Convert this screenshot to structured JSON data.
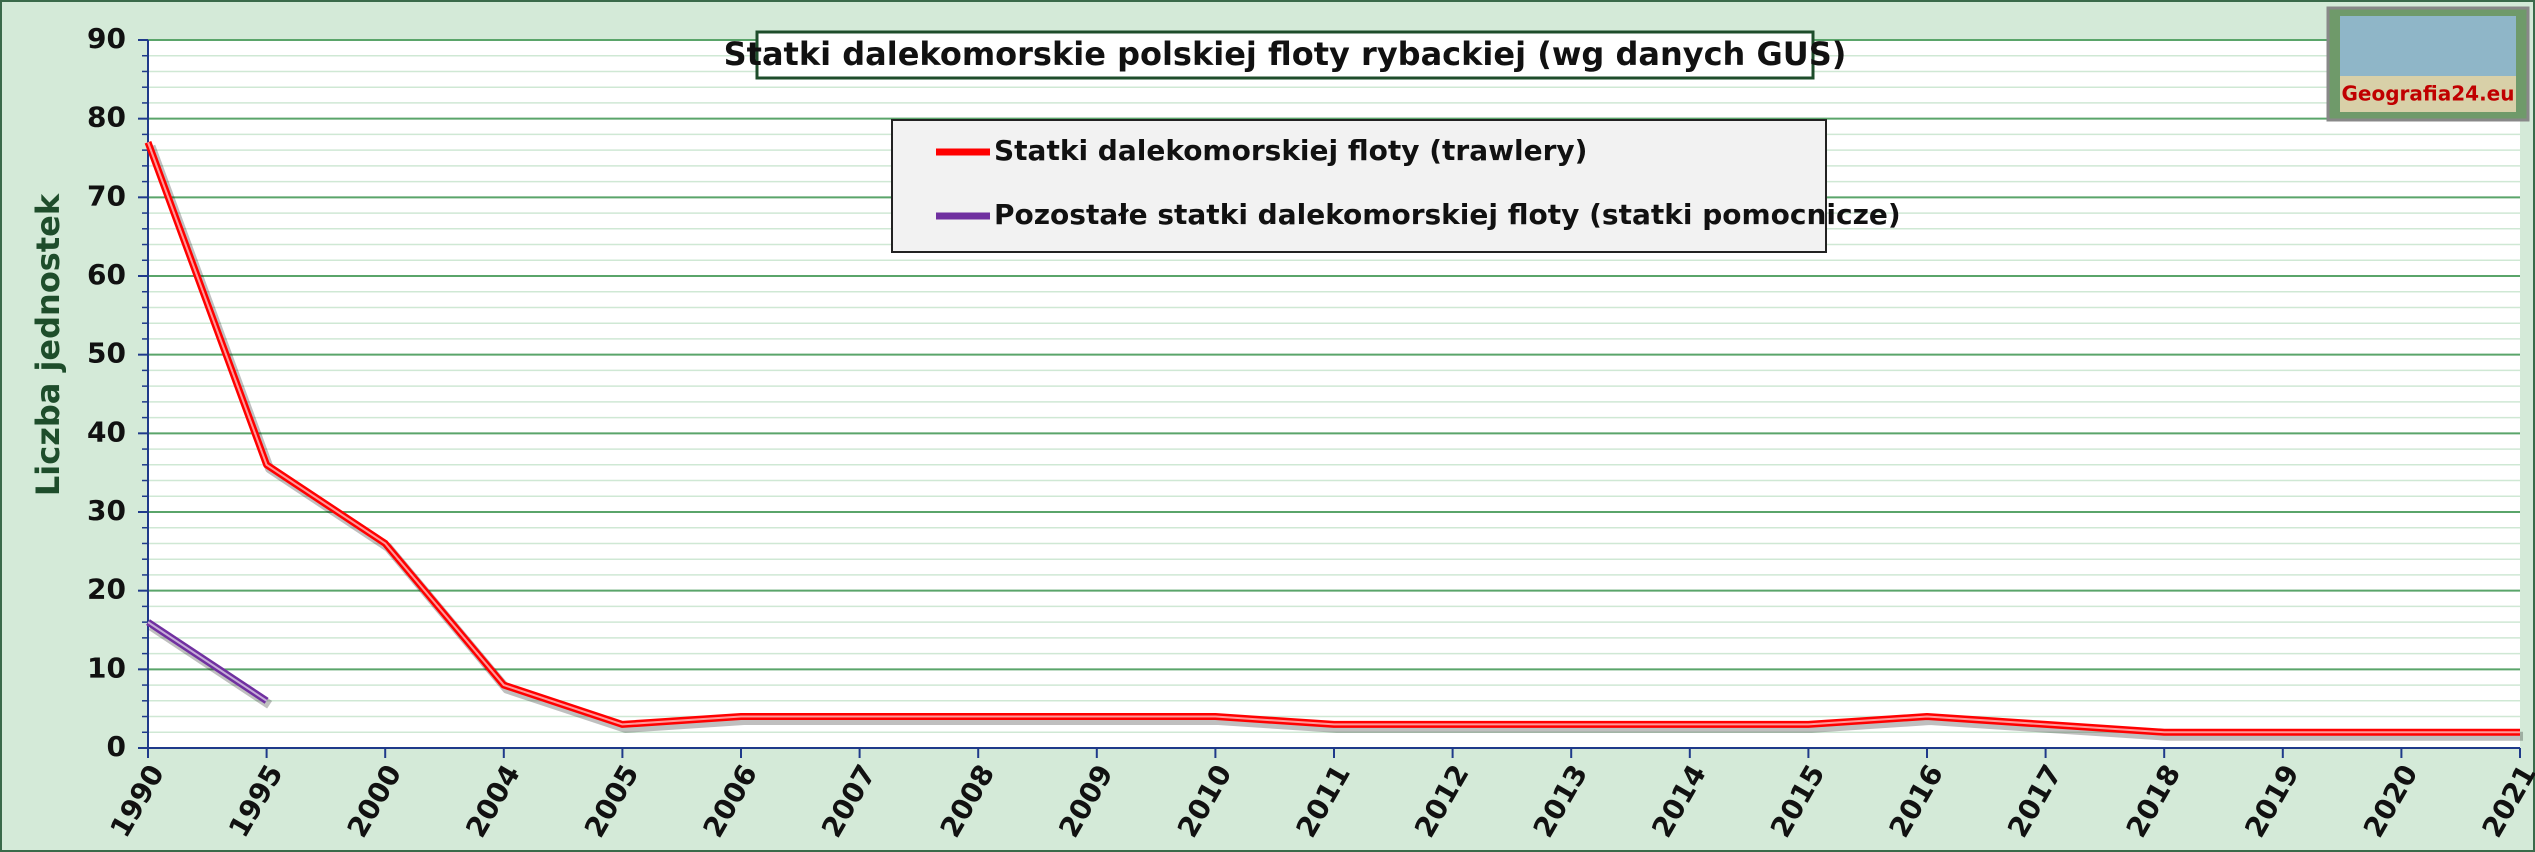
{
  "chart_data": {
    "type": "line",
    "title": "Statki dalekomorskie polskiej floty rybackiej (wg danych GUS)",
    "ylabel": "Liczba jednostek",
    "logo_text": "Geografia24.eu",
    "categories": [
      "1990",
      "1995",
      "2000",
      "2004",
      "2005",
      "2006",
      "2007",
      "2008",
      "2009",
      "2010",
      "2011",
      "2012",
      "2013",
      "2014",
      "2015",
      "2016",
      "2017",
      "2018",
      "2019",
      "2020",
      "2021"
    ],
    "series": [
      {
        "name": "Statki dalekomorskiej floty (trawlery)",
        "color": "#ff0000",
        "values": [
          77,
          36,
          26,
          8,
          3,
          4,
          4,
          4,
          4,
          4,
          3,
          3,
          3,
          3,
          3,
          4,
          3,
          2,
          2,
          2,
          2
        ]
      },
      {
        "name": "Pozostałe statki dalekomorskiej floty (statki pomocnicze)",
        "color": "#7030a0",
        "values": [
          16,
          6,
          null,
          null,
          null,
          null,
          null,
          null,
          null,
          null,
          null,
          null,
          null,
          null,
          null,
          null,
          null,
          null,
          null,
          null,
          null
        ]
      }
    ],
    "ylim": [
      0,
      90
    ],
    "yticks": [
      0,
      10,
      20,
      30,
      40,
      50,
      60,
      70,
      80,
      90
    ],
    "minor_yticks": [
      2,
      4,
      6,
      8,
      12,
      14,
      16,
      18,
      22,
      24,
      26,
      28,
      32,
      34,
      36,
      38,
      42,
      44,
      46,
      48,
      52,
      54,
      56,
      58,
      62,
      64,
      66,
      68,
      72,
      74,
      76,
      78,
      82,
      84,
      86,
      88
    ],
    "grid": true,
    "legend": "top"
  }
}
